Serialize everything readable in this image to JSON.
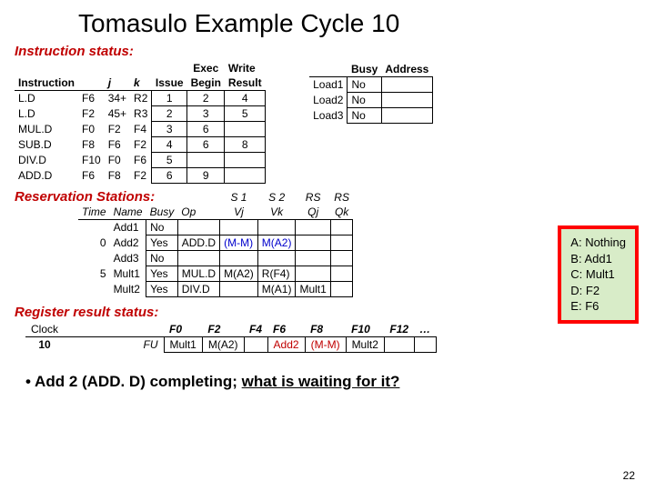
{
  "title": "Tomasulo Example Cycle 10",
  "sections": {
    "instr": "Instruction status:",
    "rs": "Reservation Stations:",
    "reg": "Register result status:"
  },
  "instr_table": {
    "cols": [
      "Instruction",
      "",
      "j",
      "k",
      "Issue",
      "Exec Begin",
      "Write Result"
    ],
    "rows": [
      [
        "L.D",
        "F6",
        "34+",
        "R2",
        "1",
        "2",
        "4"
      ],
      [
        "L.D",
        "F2",
        "45+",
        "R3",
        "2",
        "3",
        "5"
      ],
      [
        "MUL.D",
        "F0",
        "F2",
        "F4",
        "3",
        "6",
        ""
      ],
      [
        "SUB.D",
        "F8",
        "F6",
        "F2",
        "4",
        "6",
        "8"
      ],
      [
        "DIV.D",
        "F10",
        "F0",
        "F6",
        "5",
        "",
        ""
      ],
      [
        "ADD.D",
        "F6",
        "F8",
        "F2",
        "6",
        "9",
        ""
      ]
    ]
  },
  "load_table": {
    "cols": [
      "",
      "Busy",
      "Address"
    ],
    "rows": [
      [
        "Load1",
        "No",
        ""
      ],
      [
        "Load2",
        "No",
        ""
      ],
      [
        "Load3",
        "No",
        ""
      ]
    ]
  },
  "rs_table": {
    "cols": [
      "Time",
      "Name",
      "Busy",
      "Op",
      "S1 Vj",
      "S2 Vk",
      "RS Qj",
      "RS Qk"
    ],
    "rows": [
      {
        "time": "",
        "name": "Add1",
        "busy": "No",
        "op": "",
        "vj": "",
        "vk": "",
        "qj": "",
        "qk": ""
      },
      {
        "time": "0",
        "name": "Add2",
        "busy": "Yes",
        "op": "ADD.D",
        "vj": "(M-M)",
        "vk": "M(A2)",
        "qj": "",
        "qk": "",
        "hl": true
      },
      {
        "time": "",
        "name": "Add3",
        "busy": "No",
        "op": "",
        "vj": "",
        "vk": "",
        "qj": "",
        "qk": ""
      },
      {
        "time": "5",
        "name": "Mult1",
        "busy": "Yes",
        "op": "MUL.D",
        "vj": "M(A2)",
        "vk": "R(F4)",
        "qj": "",
        "qk": ""
      },
      {
        "time": "",
        "name": "Mult2",
        "busy": "Yes",
        "op": "DIV.D",
        "vj": "",
        "vk": "M(A1)",
        "qj": "Mult1",
        "qk": ""
      }
    ]
  },
  "reg_table": {
    "clock_label": "Clock",
    "clock_value": "10",
    "fu_label": "FU",
    "cols": [
      "F0",
      "F2",
      "F4",
      "F6",
      "F8",
      "F10",
      "F12",
      "…"
    ],
    "vals": [
      "Mult1",
      "M(A2)",
      "",
      "Add2",
      "(M-M)",
      "Mult2",
      "",
      ""
    ],
    "hl_cols": [
      3,
      4
    ]
  },
  "answers": {
    "A": "Nothing",
    "B": "Add1",
    "C": "Mult1",
    "D": "F2",
    "E": "F6"
  },
  "bullet_pre": "Add 2 (ADD. D) completing; ",
  "bullet_u": "what is waiting for it?",
  "page": "22",
  "colors": {
    "blue": "#0000cc",
    "red": "#c00000"
  }
}
